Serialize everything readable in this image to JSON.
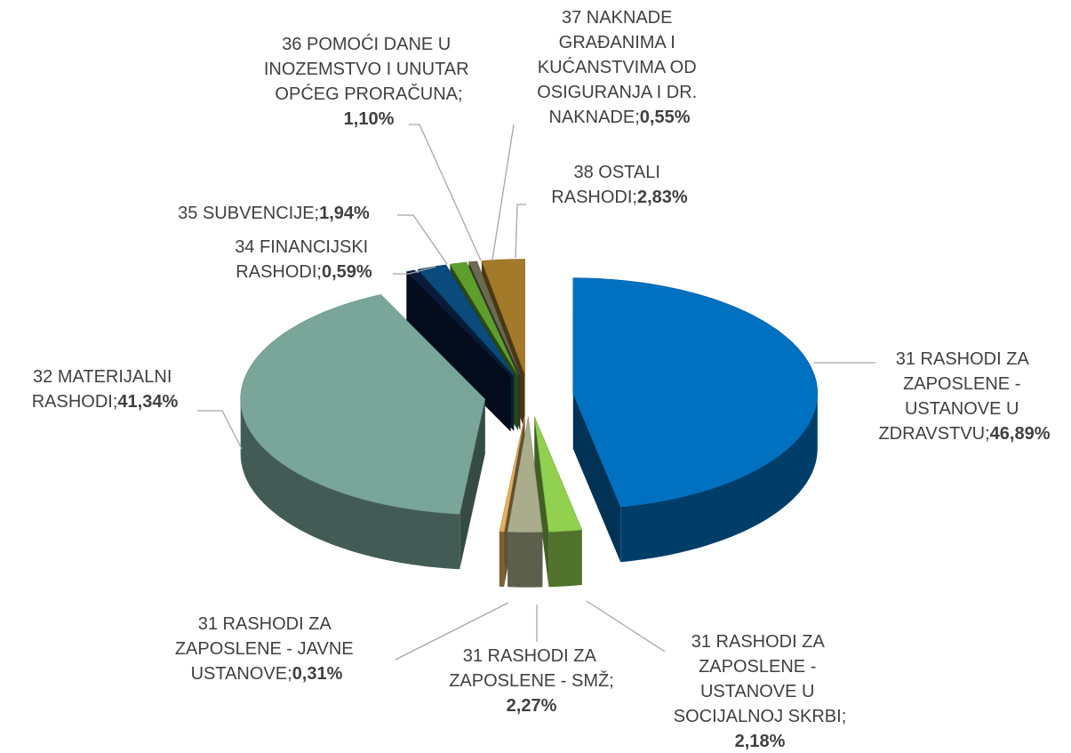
{
  "chart_data": {
    "type": "pie",
    "categories": [
      "31 RASHODI ZA ZAPOSLENE - USTANOVE U ZDRAVSTVU",
      "31 RASHODI ZA ZAPOSLENE - USTANOVE U SOCIJALNOJ SKRBI",
      "31 RASHODI ZA ZAPOSLENE - SMŽ",
      "31 RASHODI ZA ZAPOSLENE - JAVNE USTANOVE",
      "32 MATERIJALNI RASHODI",
      "34 FINANCIJSKI RASHODI",
      "35 SUBVENCIJE",
      "36 POMOĆI DANE U INOZEMSTVO I UNUTAR OPĆEG PRORAČUNA",
      "37 NAKNADE GRAĐANIMA I KUĆANSTVIMA OD OSIGURANJA I DR. NAKNADE",
      "38 OSTALI RASHODI"
    ],
    "values": [
      46.89,
      2.18,
      2.27,
      0.31,
      41.34,
      0.59,
      1.94,
      1.1,
      0.55,
      2.83
    ],
    "value_labels": [
      "46,89%",
      "2,18%",
      "2,27%",
      "0,31%",
      "41,34%",
      "0,59%",
      "1,94%",
      "1,10%",
      "0,55%",
      "2,83%"
    ],
    "label_separator": "; ",
    "colors": [
      "#0070c0",
      "#92d050",
      "#a9ad8c",
      "#e2b062",
      "#7aa69a",
      "#0b1a3c",
      "#0a4a7c",
      "#5e9e2c",
      "#6c6a50",
      "#a27a2a"
    ]
  }
}
